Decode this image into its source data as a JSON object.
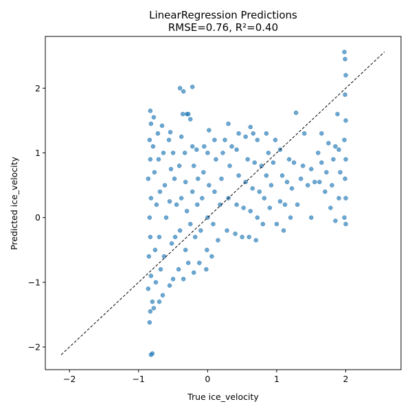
{
  "chart_data": {
    "type": "scatter",
    "title": "LinearRegression Predictions",
    "subtitle": "RMSE=0.76, R²=0.40",
    "xlabel": "True ice_velocity",
    "ylabel": "Predicted ice_velocity",
    "xlim": [
      -2.35,
      2.8
    ],
    "ylim": [
      -2.35,
      2.8
    ],
    "xticks": [
      -2,
      -1,
      0,
      1,
      2
    ],
    "yticks": [
      -2,
      -1,
      0,
      1,
      2
    ],
    "xtick_labels": [
      "−2",
      "−1",
      "0",
      "1",
      "2"
    ],
    "ytick_labels": [
      "−2",
      "−1",
      "0",
      "1",
      "2"
    ],
    "grid": false,
    "reference_line": {
      "style": "dashed",
      "color": "#000000",
      "from": [
        -2.12,
        -2.12
      ],
      "to": [
        2.56,
        2.56
      ]
    },
    "marker_color": "#1f77b4",
    "marker_alpha": 0.65,
    "series": [
      {
        "points": [
          [
            -0.82,
            -2.12
          ],
          [
            -0.8,
            -2.1
          ],
          [
            -0.84,
            -1.62
          ],
          [
            -0.83,
            -1.45
          ],
          [
            -0.8,
            -1.3
          ],
          [
            -0.86,
            -1.1
          ],
          [
            -0.82,
            -0.9
          ],
          [
            -0.85,
            -0.6
          ],
          [
            -0.83,
            -0.3
          ],
          [
            -0.84,
            0.0
          ],
          [
            -0.82,
            0.3
          ],
          [
            -0.86,
            0.6
          ],
          [
            -0.83,
            0.9
          ],
          [
            -0.84,
            1.2
          ],
          [
            -0.82,
            1.45
          ],
          [
            -0.83,
            1.65
          ],
          [
            -0.78,
            -1.4
          ],
          [
            -0.75,
            -1.0
          ],
          [
            -0.76,
            -0.5
          ],
          [
            -0.74,
            0.2
          ],
          [
            -0.77,
            0.7
          ],
          [
            -0.79,
            1.1
          ],
          [
            -0.78,
            1.55
          ],
          [
            -0.7,
            -1.3
          ],
          [
            -0.68,
            -0.8
          ],
          [
            -0.7,
            -0.3
          ],
          [
            -0.69,
            0.4
          ],
          [
            -0.71,
            0.9
          ],
          [
            -0.72,
            1.3
          ],
          [
            -0.65,
            -1.2
          ],
          [
            -0.63,
            -0.6
          ],
          [
            -0.6,
            0.0
          ],
          [
            -0.62,
            0.5
          ],
          [
            -0.64,
            1.0
          ],
          [
            -0.66,
            1.42
          ],
          [
            -0.55,
            -1.05
          ],
          [
            -0.52,
            -0.4
          ],
          [
            -0.55,
            0.25
          ],
          [
            -0.53,
            0.75
          ],
          [
            -0.56,
            1.2
          ],
          [
            -0.54,
            1.32
          ],
          [
            -0.5,
            -0.95
          ],
          [
            -0.47,
            -0.3
          ],
          [
            -0.45,
            0.2
          ],
          [
            -0.48,
            0.6
          ],
          [
            -0.5,
            1.0
          ],
          [
            -0.42,
            -0.8
          ],
          [
            -0.4,
            -0.2
          ],
          [
            -0.38,
            0.3
          ],
          [
            -0.41,
            0.8
          ],
          [
            -0.38,
            1.25
          ],
          [
            -0.36,
            1.6
          ],
          [
            -0.35,
            -0.95
          ],
          [
            -0.32,
            -0.5
          ],
          [
            -0.3,
            0.1
          ],
          [
            -0.32,
            0.55
          ],
          [
            -0.33,
            1.0
          ],
          [
            -0.28,
            1.6
          ],
          [
            -0.25,
            1.52
          ],
          [
            -0.3,
            1.6
          ],
          [
            -0.28,
            -0.7
          ],
          [
            -0.25,
            -0.1
          ],
          [
            -0.22,
            0.4
          ],
          [
            -0.2,
            0.8
          ],
          [
            -0.22,
            1.1
          ],
          [
            -0.2,
            -0.85
          ],
          [
            -0.18,
            -0.3
          ],
          [
            -0.15,
            0.2
          ],
          [
            -0.14,
            0.6
          ],
          [
            -0.16,
            1.05
          ],
          [
            -0.12,
            -0.7
          ],
          [
            -0.1,
            -0.2
          ],
          [
            -0.08,
            0.3
          ],
          [
            -0.06,
            0.7
          ],
          [
            -0.05,
            1.1
          ],
          [
            -0.4,
            2.0
          ],
          [
            -0.35,
            1.95
          ],
          [
            -0.22,
            2.02
          ],
          [
            -0.02,
            -0.8
          ],
          [
            -0.01,
            -0.5
          ],
          [
            0.0,
            0.0
          ],
          [
            0.02,
            0.5
          ],
          [
            0.0,
            1.0
          ],
          [
            0.02,
            1.35
          ],
          [
            0.06,
            -0.6
          ],
          [
            0.08,
            -0.1
          ],
          [
            0.1,
            0.4
          ],
          [
            0.12,
            0.9
          ],
          [
            0.1,
            1.2
          ],
          [
            0.15,
            -0.35
          ],
          [
            0.18,
            0.2
          ],
          [
            0.2,
            0.6
          ],
          [
            0.22,
            1.0
          ],
          [
            0.25,
            1.2
          ],
          [
            0.28,
            -0.2
          ],
          [
            0.3,
            0.3
          ],
          [
            0.32,
            0.8
          ],
          [
            0.35,
            1.1
          ],
          [
            0.3,
            1.45
          ],
          [
            0.4,
            -0.25
          ],
          [
            0.42,
            0.2
          ],
          [
            0.45,
            0.65
          ],
          [
            0.42,
            1.05
          ],
          [
            0.45,
            1.3
          ],
          [
            0.5,
            -0.3
          ],
          [
            0.52,
            0.15
          ],
          [
            0.55,
            0.55
          ],
          [
            0.58,
            0.9
          ],
          [
            0.55,
            1.25
          ],
          [
            0.6,
            -0.3
          ],
          [
            0.62,
            0.1
          ],
          [
            0.65,
            0.45
          ],
          [
            0.68,
            0.85
          ],
          [
            0.66,
            1.3
          ],
          [
            0.62,
            1.4
          ],
          [
            0.7,
            -0.35
          ],
          [
            0.72,
            0.0
          ],
          [
            0.75,
            0.4
          ],
          [
            0.78,
            0.8
          ],
          [
            0.72,
            1.2
          ],
          [
            0.8,
            -0.1
          ],
          [
            0.82,
            0.3
          ],
          [
            0.85,
            0.65
          ],
          [
            0.88,
            1.0
          ],
          [
            0.85,
            1.3
          ],
          [
            0.9,
            0.15
          ],
          [
            0.92,
            0.5
          ],
          [
            0.95,
            0.85
          ],
          [
            0.98,
            1.2
          ],
          [
            1.0,
            -0.1
          ],
          [
            1.05,
            0.25
          ],
          [
            1.08,
            0.65
          ],
          [
            1.05,
            1.05
          ],
          [
            1.1,
            -0.2
          ],
          [
            1.12,
            0.2
          ],
          [
            1.15,
            0.55
          ],
          [
            1.18,
            0.9
          ],
          [
            1.2,
            0.0
          ],
          [
            1.22,
            0.45
          ],
          [
            1.25,
            0.85
          ],
          [
            1.28,
            1.62
          ],
          [
            1.3,
            0.2
          ],
          [
            1.35,
            0.6
          ],
          [
            1.38,
            0.8
          ],
          [
            1.4,
            1.3
          ],
          [
            1.45,
            0.5
          ],
          [
            1.5,
            0.75
          ],
          [
            1.55,
            0.55
          ],
          [
            1.5,
            0.0
          ],
          [
            1.6,
            1.0
          ],
          [
            1.62,
            0.55
          ],
          [
            1.65,
            0.85
          ],
          [
            1.65,
            1.3
          ],
          [
            1.7,
            0.4
          ],
          [
            1.72,
            0.7
          ],
          [
            1.75,
            1.15
          ],
          [
            1.78,
            0.15
          ],
          [
            1.8,
            0.5
          ],
          [
            1.82,
            0.9
          ],
          [
            1.85,
            1.1
          ],
          [
            1.88,
            1.6
          ],
          [
            1.85,
            -0.05
          ],
          [
            1.9,
            0.3
          ],
          [
            1.92,
            0.7
          ],
          [
            1.9,
            1.05
          ],
          [
            1.98,
            2.56
          ],
          [
            1.99,
            2.45
          ],
          [
            2.0,
            2.2
          ],
          [
            1.99,
            1.9
          ],
          [
            2.0,
            1.5
          ],
          [
            1.98,
            1.2
          ],
          [
            2.0,
            0.9
          ],
          [
            1.99,
            0.6
          ],
          [
            2.0,
            0.3
          ],
          [
            1.98,
            0.0
          ],
          [
            2.0,
            -0.1
          ]
        ]
      }
    ]
  }
}
